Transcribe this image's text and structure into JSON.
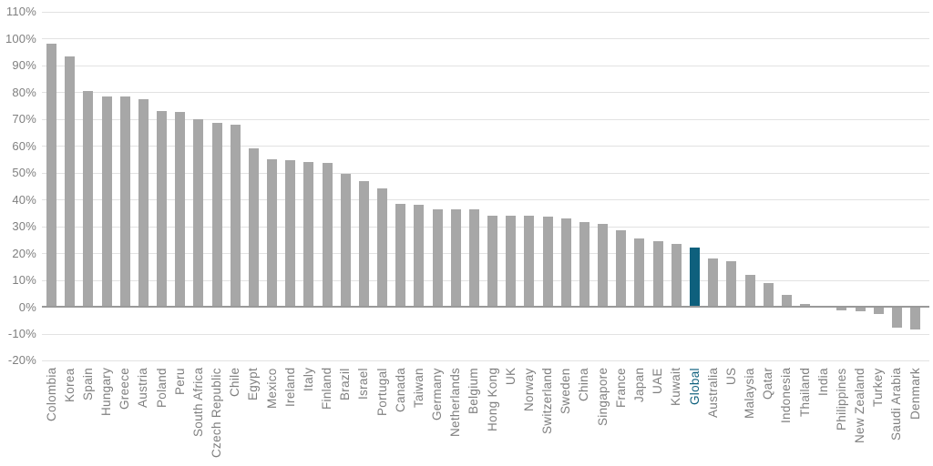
{
  "chart_data": {
    "type": "bar",
    "title": "",
    "xlabel": "",
    "ylabel": "",
    "ylim": [
      -20,
      110
    ],
    "ytick_step": 10,
    "ytick_suffix": "%",
    "grid": true,
    "legend": false,
    "sort_order": "descending",
    "highlight_category": "Global",
    "categories": [
      "Colombia",
      "Korea",
      "Spain",
      "Hungary",
      "Greece",
      "Austria",
      "Poland",
      "Peru",
      "South Africa",
      "Czech Republic",
      "Chile",
      "Egypt",
      "Mexico",
      "Ireland",
      "Italy",
      "Finland",
      "Brazil",
      "Israel",
      "Portugal",
      "Canada",
      "Taiwan",
      "Germany",
      "Netherlands",
      "Belgium",
      "Hong Kong",
      "UK",
      "Norway",
      "Switzerland",
      "Sweden",
      "China",
      "Singapore",
      "France",
      "Japan",
      "UAE",
      "Kuwait",
      "Global",
      "Australia",
      "US",
      "Malaysia",
      "Qatar",
      "Indonesia",
      "Thailand",
      "India",
      "Philippines",
      "New Zealand",
      "Turkey",
      "Saudi Arabia",
      "Denmark"
    ],
    "values": [
      98,
      93.5,
      80.5,
      78.5,
      78.5,
      77.5,
      73,
      72.5,
      70,
      68.5,
      68,
      59,
      55,
      54.5,
      54,
      53.5,
      49.5,
      47,
      44,
      38.5,
      38,
      36.5,
      36.5,
      36.5,
      34,
      34,
      34,
      33.5,
      33,
      31.5,
      31,
      28.5,
      25.5,
      24.5,
      23.5,
      22,
      18,
      17,
      12,
      9,
      4.5,
      1,
      0.5,
      -1,
      -1.5,
      -2.5,
      -7.5,
      -8
    ],
    "y_tick_labels": [
      "110%",
      "100%",
      "90%",
      "80%",
      "70%",
      "60%",
      "50%",
      "40%",
      "30%",
      "20%",
      "10%",
      "0%",
      "-10%",
      "-20%"
    ]
  },
  "colors": {
    "bar": "#a7a7a7",
    "highlight": "#0e607d",
    "gridline": "#e2e2e2",
    "baseline": "#999999",
    "axis_text": "#7f7f7f",
    "background": "#ffffff"
  }
}
